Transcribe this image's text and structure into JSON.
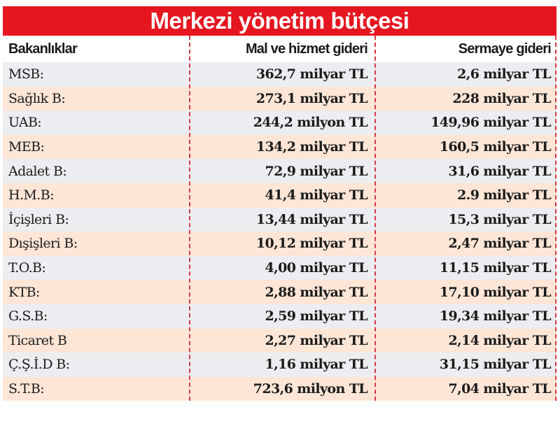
{
  "title": "Merkezi yönetim bütçesi",
  "headers": [
    "Bakanlıklar",
    "Mal ve hizmet gideri",
    "Sermaye gideri"
  ],
  "rows": [
    {
      "ministry": "MSB:",
      "goods_services": "362,7 milyar TL",
      "capital": "2,6 milyar TL"
    },
    {
      "ministry": "Sağlık B:",
      "goods_services": "273,1 milyar TL",
      "capital": "228 milyar TL"
    },
    {
      "ministry": "UAB:",
      "goods_services": "244,2 milyon TL",
      "capital": "149,96 milyar TL"
    },
    {
      "ministry": "MEB:",
      "goods_services": "134,2 milyar TL",
      "capital": "160,5 milyar TL"
    },
    {
      "ministry": "Adalet B:",
      "goods_services": "72,9 milyar TL",
      "capital": "31,6 milyar TL"
    },
    {
      "ministry": "H.M.B:",
      "goods_services": "41,4 milyar TL",
      "capital": "2.9 milyar TL"
    },
    {
      "ministry": "İçişleri B:",
      "goods_services": "13,44 milyar TL",
      "capital": "15,3 milyar TL"
    },
    {
      "ministry": "Dışişleri B:",
      "goods_services": "10,12 milyar TL",
      "capital": "2,47 milyar TL"
    },
    {
      "ministry": "T.O.B:",
      "goods_services": "4,00 milyar TL",
      "capital": "11,15 milyar TL"
    },
    {
      "ministry": "KTB:",
      "goods_services": "2,88 milyar TL",
      "capital": "17,10 milyar TL"
    },
    {
      "ministry": "G.S.B:",
      "goods_services": "2,59 milyar TL",
      "capital": "19,34 milyar TL"
    },
    {
      "ministry": "Ticaret B",
      "goods_services": "2,27 milyar TL",
      "capital": "2,14 milyar TL"
    },
    {
      "ministry": "Ç.Ş.İ.D B:",
      "goods_services": "1,16 milyar TL",
      "capital": "31,15 milyar TL"
    },
    {
      "ministry": "S.T.B:",
      "goods_services": "723,6 milyon TL",
      "capital": "7,04 milyar TL"
    }
  ],
  "colors": {
    "title_bg": "#e5161f",
    "row_grey": "#ecedf0",
    "row_peach": "#fde6d6",
    "divider": "#d33a48"
  },
  "chart_data": {
    "type": "table",
    "title": "Merkezi yönetim bütçesi",
    "columns": [
      "Bakanlıklar",
      "Mal ve hizmet gideri",
      "Sermaye gideri"
    ],
    "categories": [
      "MSB",
      "Sağlık B",
      "UAB",
      "MEB",
      "Adalet B",
      "H.M.B",
      "İçişleri B",
      "Dışişleri B",
      "T.O.B",
      "KTB",
      "G.S.B",
      "Ticaret B",
      "Ç.Ş.İ.D B",
      "S.T.B"
    ],
    "series": [
      {
        "name": "Mal ve hizmet gideri",
        "values": [
          "362,7 milyar TL",
          "273,1 milyar TL",
          "244,2 milyon TL",
          "134,2 milyar TL",
          "72,9 milyar TL",
          "41,4 milyar TL",
          "13,44 milyar TL",
          "10,12 milyar TL",
          "4,00 milyar TL",
          "2,88 milyar TL",
          "2,59 milyar TL",
          "2,27 milyar TL",
          "1,16 milyar TL",
          "723,6 milyon TL"
        ]
      },
      {
        "name": "Sermaye gideri",
        "values": [
          "2,6 milyar TL",
          "228 milyar TL",
          "149,96 milyar TL",
          "160,5 milyar TL",
          "31,6 milyar TL",
          "2.9 milyar TL",
          "15,3 milyar TL",
          "2,47 milyar TL",
          "11,15 milyar TL",
          "17,10 milyar TL",
          "19,34 milyar TL",
          "2,14 milyar TL",
          "31,15 milyar TL",
          "7,04 milyar TL"
        ]
      }
    ],
    "layout": {
      "grid": false,
      "legend": "none",
      "row_striping": [
        "grey",
        "peach"
      ]
    }
  }
}
